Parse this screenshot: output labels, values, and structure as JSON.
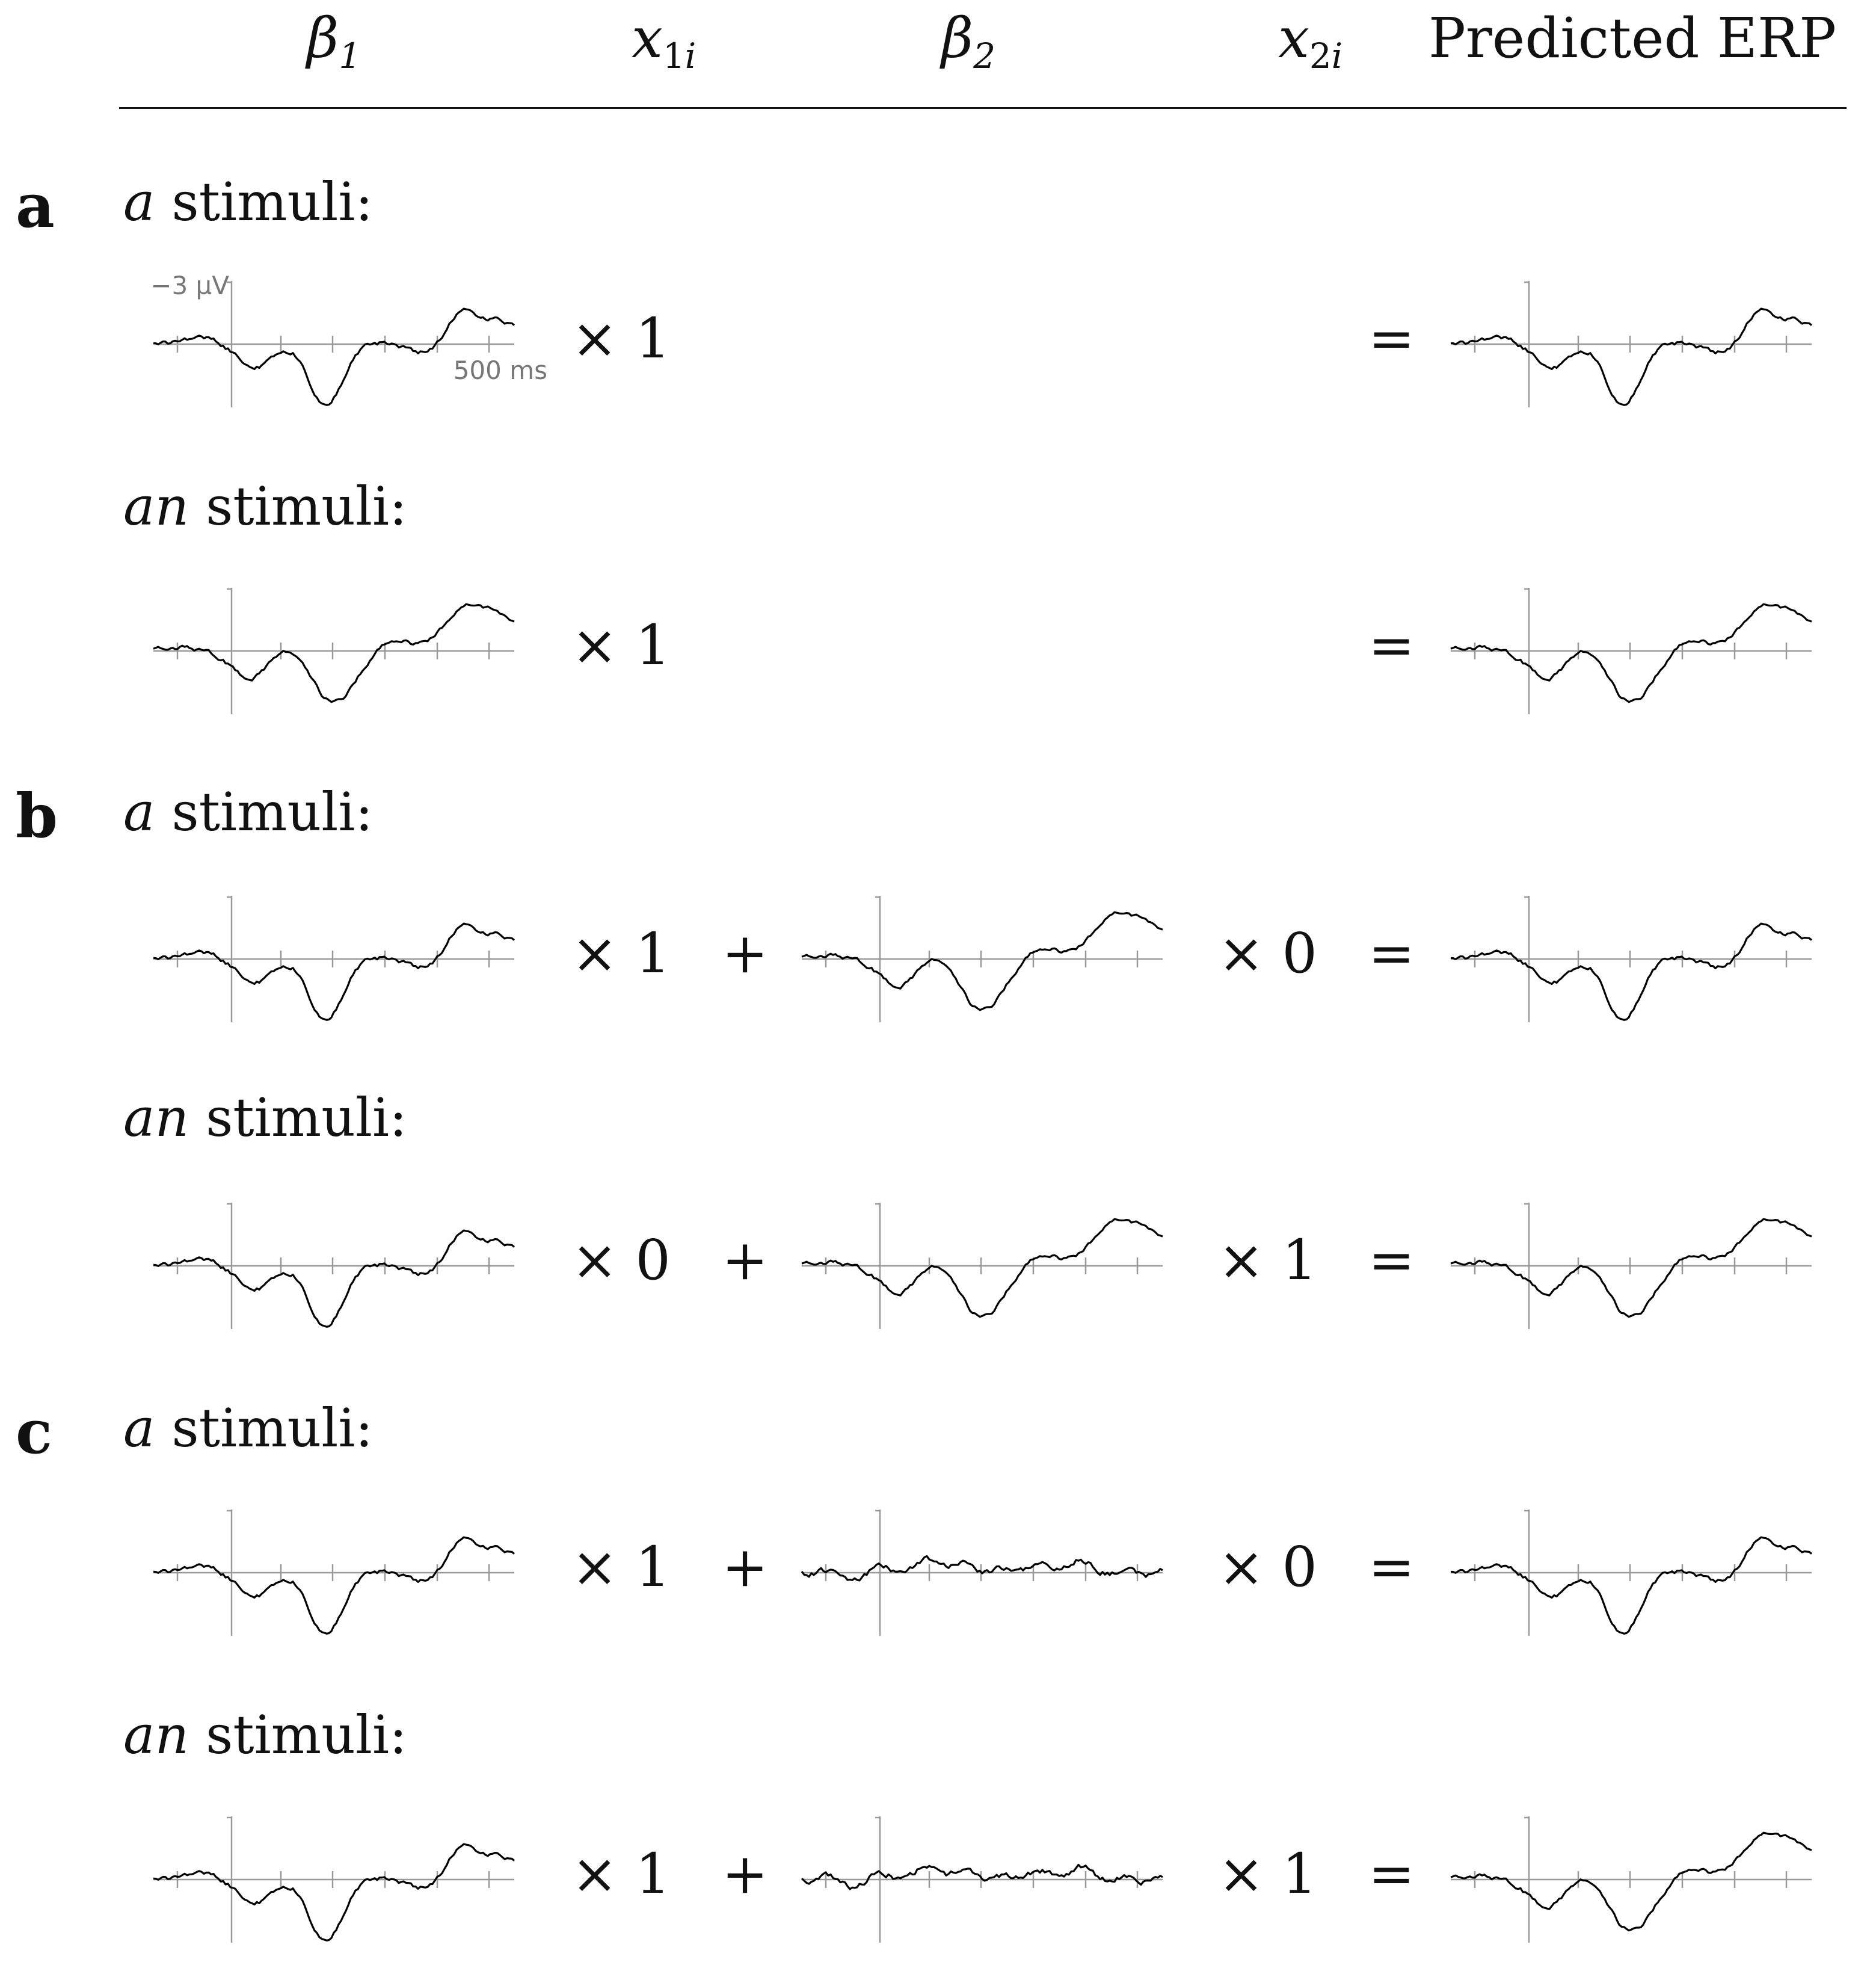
{
  "header": {
    "beta1": {
      "symbol": "β",
      "sub": "1"
    },
    "x1i": {
      "symbol": "x",
      "sub1": "1",
      "sub2": "i"
    },
    "beta2": {
      "symbol": "β",
      "sub": "2"
    },
    "x2i": {
      "symbol": "x",
      "sub1": "2",
      "sub2": "i"
    },
    "predicted": "Predicted ERP"
  },
  "scale": {
    "voltage": "−3 µV",
    "time": "500 ms"
  },
  "panels": [
    {
      "letter": "a",
      "rows": [
        {
          "label_italic": "a",
          "label_rest": " stimuli:",
          "x1": "× 1",
          "plus": "",
          "x2": "",
          "eq": "="
        },
        {
          "label_italic": "an",
          "label_rest": " stimuli:",
          "x1": "× 1",
          "plus": "",
          "x2": "",
          "eq": "="
        }
      ]
    },
    {
      "letter": "b",
      "rows": [
        {
          "label_italic": "a",
          "label_rest": " stimuli:",
          "x1": "× 1",
          "plus": "+",
          "x2": "× 0",
          "eq": "="
        },
        {
          "label_italic": "an",
          "label_rest": " stimuli:",
          "x1": "× 0",
          "plus": "+",
          "x2": "× 1",
          "eq": "="
        }
      ]
    },
    {
      "letter": "c",
      "rows": [
        {
          "label_italic": "a",
          "label_rest": " stimuli:",
          "x1": "× 1",
          "plus": "+",
          "x2": "× 0",
          "eq": "="
        },
        {
          "label_italic": "an",
          "label_rest": " stimuli:",
          "x1": "× 1",
          "plus": "+",
          "x2": "× 1",
          "eq": "="
        }
      ]
    }
  ]
}
